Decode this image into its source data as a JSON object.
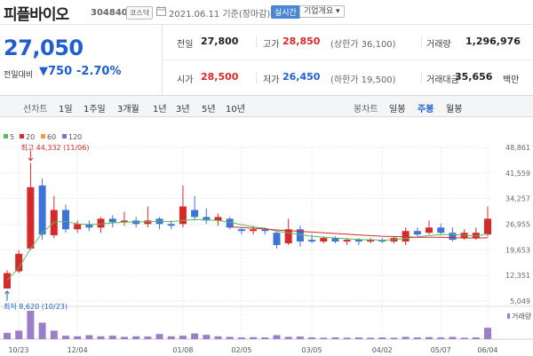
{
  "header": {
    "stock_name": "피플바이오",
    "stock_code": "304840",
    "market": "코스닥",
    "date_text": "2021.06.11  기준(장마감)",
    "realtime_label": "실시간",
    "company_info_label": "기업개요 ▾"
  },
  "summary": {
    "price": "27,050",
    "change_label": "전일대비",
    "change_value": "▼750",
    "change_pct": "-2.70%",
    "prev_close_label": "전일",
    "prev_close": "27,800",
    "high_label": "고가",
    "high": "28,850",
    "upper_limit": "(상한가 36,100)",
    "volume_label": "거래량",
    "volume": "1,296,976",
    "open_label": "시가",
    "open": "28,500",
    "low_label": "저가",
    "low": "26,450",
    "lower_limit": "(하한가 19,500)",
    "amount_label": "거래대금",
    "amount": "35,656",
    "amount_unit": "백만"
  },
  "tabs": {
    "line_chart": "선차트",
    "periods": [
      "1일",
      "1주일",
      "3개월",
      "1년",
      "3년",
      "5년",
      "10년"
    ],
    "candle_chart": "봉차트",
    "candles": [
      "일봉",
      "주봉",
      "월봉"
    ],
    "active_candle": "주봉"
  },
  "legend": {
    "ma": [
      {
        "label": "5",
        "color": "#5cb85c"
      },
      {
        "label": "20",
        "color": "#d62a2a"
      },
      {
        "label": "60",
        "color": "#f0a030"
      },
      {
        "label": "120",
        "color": "#8a6bbf"
      }
    ],
    "volume_label": "거래량"
  },
  "colors": {
    "up": "#d62a2a",
    "down": "#3d74d6",
    "volume": "#9b7ec8",
    "ma5": "#5cb85c",
    "ma20": "#d62a2a",
    "grid": "#e8e8e8"
  },
  "chart_data": {
    "type": "candlestick",
    "y_ticks": [
      "48,861",
      "41,559",
      "34,257",
      "26,955",
      "19,653",
      "12,351",
      "5,049"
    ],
    "ylim": [
      5049,
      48861
    ],
    "x_ticks": [
      "10/23",
      "12/04",
      "01/08",
      "02/05",
      "03/05",
      "04/02",
      "05/07",
      "06/04"
    ],
    "annotations": {
      "high": "최고 44,332 (11/06)",
      "low": "최저 8,620 (10/23)"
    },
    "candles": [
      {
        "o": 8620,
        "c": 13000,
        "h": 13800,
        "l": 8620
      },
      {
        "o": 13500,
        "c": 18500,
        "h": 19500,
        "l": 13000
      },
      {
        "o": 20000,
        "c": 37500,
        "h": 44332,
        "l": 19500
      },
      {
        "o": 38000,
        "c": 24000,
        "h": 40000,
        "l": 22500
      },
      {
        "o": 23800,
        "c": 31000,
        "h": 35000,
        "l": 23000
      },
      {
        "o": 31000,
        "c": 25500,
        "h": 32500,
        "l": 24500
      },
      {
        "o": 25500,
        "c": 27000,
        "h": 28000,
        "l": 24500
      },
      {
        "o": 27000,
        "c": 26000,
        "h": 28000,
        "l": 25000
      },
      {
        "o": 26000,
        "c": 28500,
        "h": 29000,
        "l": 24500
      },
      {
        "o": 28500,
        "c": 27500,
        "h": 29500,
        "l": 26000
      },
      {
        "o": 27500,
        "c": 28000,
        "h": 30500,
        "l": 26500
      },
      {
        "o": 28000,
        "c": 27000,
        "h": 29000,
        "l": 26000
      },
      {
        "o": 27000,
        "c": 28000,
        "h": 32000,
        "l": 26000
      },
      {
        "o": 28500,
        "c": 27000,
        "h": 29000,
        "l": 25500
      },
      {
        "o": 27000,
        "c": 26500,
        "h": 28000,
        "l": 25500
      },
      {
        "o": 27000,
        "c": 32000,
        "h": 38000,
        "l": 26000
      },
      {
        "o": 31000,
        "c": 29000,
        "h": 35000,
        "l": 28000
      },
      {
        "o": 29000,
        "c": 28000,
        "h": 31500,
        "l": 27000
      },
      {
        "o": 28000,
        "c": 29000,
        "h": 30000,
        "l": 26500
      },
      {
        "o": 28500,
        "c": 26000,
        "h": 29000,
        "l": 25500
      },
      {
        "o": 25500,
        "c": 25000,
        "h": 26000,
        "l": 24000
      },
      {
        "o": 25000,
        "c": 25500,
        "h": 26500,
        "l": 24000
      },
      {
        "o": 25500,
        "c": 25000,
        "h": 26000,
        "l": 24000
      },
      {
        "o": 24500,
        "c": 21000,
        "h": 25000,
        "l": 20000
      },
      {
        "o": 21500,
        "c": 25500,
        "h": 28500,
        "l": 21000
      },
      {
        "o": 25500,
        "c": 22000,
        "h": 26500,
        "l": 20500
      },
      {
        "o": 22500,
        "c": 22000,
        "h": 24000,
        "l": 21500
      },
      {
        "o": 22000,
        "c": 23000,
        "h": 23500,
        "l": 21500
      },
      {
        "o": 23000,
        "c": 22000,
        "h": 23500,
        "l": 21500
      },
      {
        "o": 22000,
        "c": 22500,
        "h": 23000,
        "l": 21000
      },
      {
        "o": 22500,
        "c": 22000,
        "h": 23000,
        "l": 21000
      },
      {
        "o": 22000,
        "c": 22500,
        "h": 23000,
        "l": 21500
      },
      {
        "o": 22500,
        "c": 22000,
        "h": 23000,
        "l": 21500
      },
      {
        "o": 22000,
        "c": 23000,
        "h": 23500,
        "l": 21500
      },
      {
        "o": 22000,
        "c": 25000,
        "h": 26000,
        "l": 21000
      },
      {
        "o": 25000,
        "c": 24000,
        "h": 26000,
        "l": 23500
      },
      {
        "o": 24500,
        "c": 26000,
        "h": 28000,
        "l": 24000
      },
      {
        "o": 26000,
        "c": 24500,
        "h": 27000,
        "l": 24000
      },
      {
        "o": 24500,
        "c": 22500,
        "h": 26000,
        "l": 22000
      },
      {
        "o": 23000,
        "c": 24500,
        "h": 25500,
        "l": 22500
      },
      {
        "o": 23000,
        "c": 24500,
        "h": 26000,
        "l": 22500
      },
      {
        "o": 24000,
        "c": 28500,
        "h": 32000,
        "l": 23500
      }
    ],
    "ma5": [
      11000,
      14500,
      20000,
      24500,
      27500,
      27800,
      27000,
      26800,
      27000,
      27300,
      27500,
      27600,
      27700,
      27800,
      27700,
      28000,
      28300,
      28200,
      28000,
      27500,
      26800,
      26200,
      25800,
      25000,
      24500,
      24000,
      23500,
      23200,
      23000,
      22800,
      22600,
      22500,
      22400,
      22500,
      22900,
      23300,
      23700,
      24000,
      24000,
      23800,
      23600,
      24200
    ],
    "ma20": [
      null,
      null,
      null,
      null,
      null,
      null,
      null,
      null,
      null,
      null,
      null,
      null,
      null,
      null,
      null,
      null,
      null,
      null,
      null,
      26200,
      26000,
      25800,
      25600,
      25300,
      25100,
      24900,
      24700,
      24500,
      24300,
      24100,
      23900,
      23700,
      23500,
      23400,
      23300,
      23200,
      23200,
      23200,
      23100,
      23000,
      23000,
      23100
    ],
    "volume": [
      22,
      30,
      100,
      58,
      30,
      12,
      10,
      14,
      10,
      12,
      8,
      10,
      9,
      18,
      10,
      12,
      20,
      15,
      10,
      8,
      6,
      7,
      6,
      14,
      8,
      9,
      6,
      5,
      6,
      5,
      6,
      5,
      6,
      5,
      8,
      6,
      7,
      6,
      8,
      5,
      6,
      40
    ],
    "volume_max": 100
  }
}
